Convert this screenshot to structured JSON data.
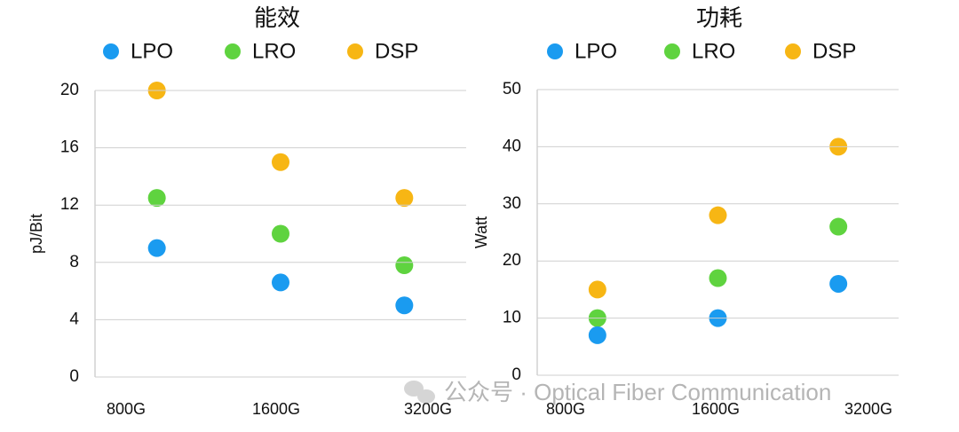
{
  "chart_data": [
    {
      "type": "scatter",
      "title": "能效",
      "y_label": "pJ/Bit",
      "categories": [
        "800G",
        "1600G",
        "3200G"
      ],
      "series": [
        {
          "name": "LPO",
          "color": "#1a9bf0",
          "values": [
            9,
            6.6,
            5
          ]
        },
        {
          "name": "LRO",
          "color": "#5fd33f",
          "values": [
            12.5,
            10,
            7.8
          ]
        },
        {
          "name": "DSP",
          "color": "#f7b614",
          "values": [
            20,
            15,
            12.5
          ]
        }
      ],
      "ylim": [
        0,
        20
      ],
      "yticks": [
        0,
        4,
        8,
        12,
        16,
        20
      ],
      "grid": true,
      "legend": "top"
    },
    {
      "type": "scatter",
      "title": "功耗",
      "y_label": "Watt",
      "categories": [
        "800G",
        "1600G",
        "3200G"
      ],
      "series": [
        {
          "name": "LPO",
          "color": "#1a9bf0",
          "values": [
            7,
            10,
            16
          ]
        },
        {
          "name": "LRO",
          "color": "#5fd33f",
          "values": [
            10,
            17,
            26
          ]
        },
        {
          "name": "DSP",
          "color": "#f7b614",
          "values": [
            15,
            28,
            40
          ]
        }
      ],
      "ylim": [
        0,
        50
      ],
      "yticks": [
        0,
        10,
        20,
        30,
        40,
        50
      ],
      "grid": true,
      "legend": "top"
    }
  ],
  "watermark": "公众号 · Optical Fiber Communication"
}
